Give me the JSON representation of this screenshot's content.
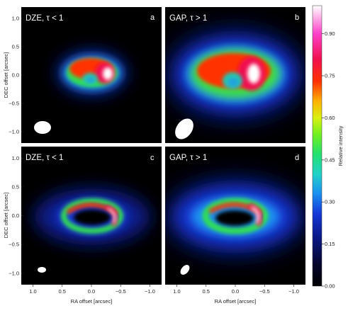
{
  "panels": [
    {
      "id": "a",
      "title": "DZE,  τ < 1",
      "letter": "a",
      "model": "dze",
      "optical": "thin"
    },
    {
      "id": "b",
      "title": "GAP,  τ > 1",
      "letter": "b",
      "model": "gap",
      "optical": "thick"
    },
    {
      "id": "c",
      "title": "DZE,  τ < 1",
      "letter": "c",
      "model": "dze",
      "optical": "thin"
    },
    {
      "id": "d",
      "title": "GAP,  τ > 1",
      "letter": "d",
      "model": "gap",
      "optical": "thick"
    }
  ],
  "axes": {
    "xlabel": "RA offset [arcsec]",
    "ylabel": "DEC offset [arcsec]",
    "xticks": [
      "1.0",
      "0.5",
      "0.0",
      "−0.5",
      "−1.0"
    ],
    "yticks": [
      "1.0",
      "0.5",
      "0.0",
      "−0.5",
      "−1.0"
    ]
  },
  "colorbar": {
    "label": "Relative intensity",
    "ticks": [
      "0.00",
      "0.15",
      "0.30",
      "0.45",
      "0.60",
      "0.75",
      "0.90"
    ],
    "tick_values": [
      0.0,
      0.15,
      0.3,
      0.45,
      0.6,
      0.75,
      0.9
    ],
    "range": [
      0,
      1
    ]
  }
}
